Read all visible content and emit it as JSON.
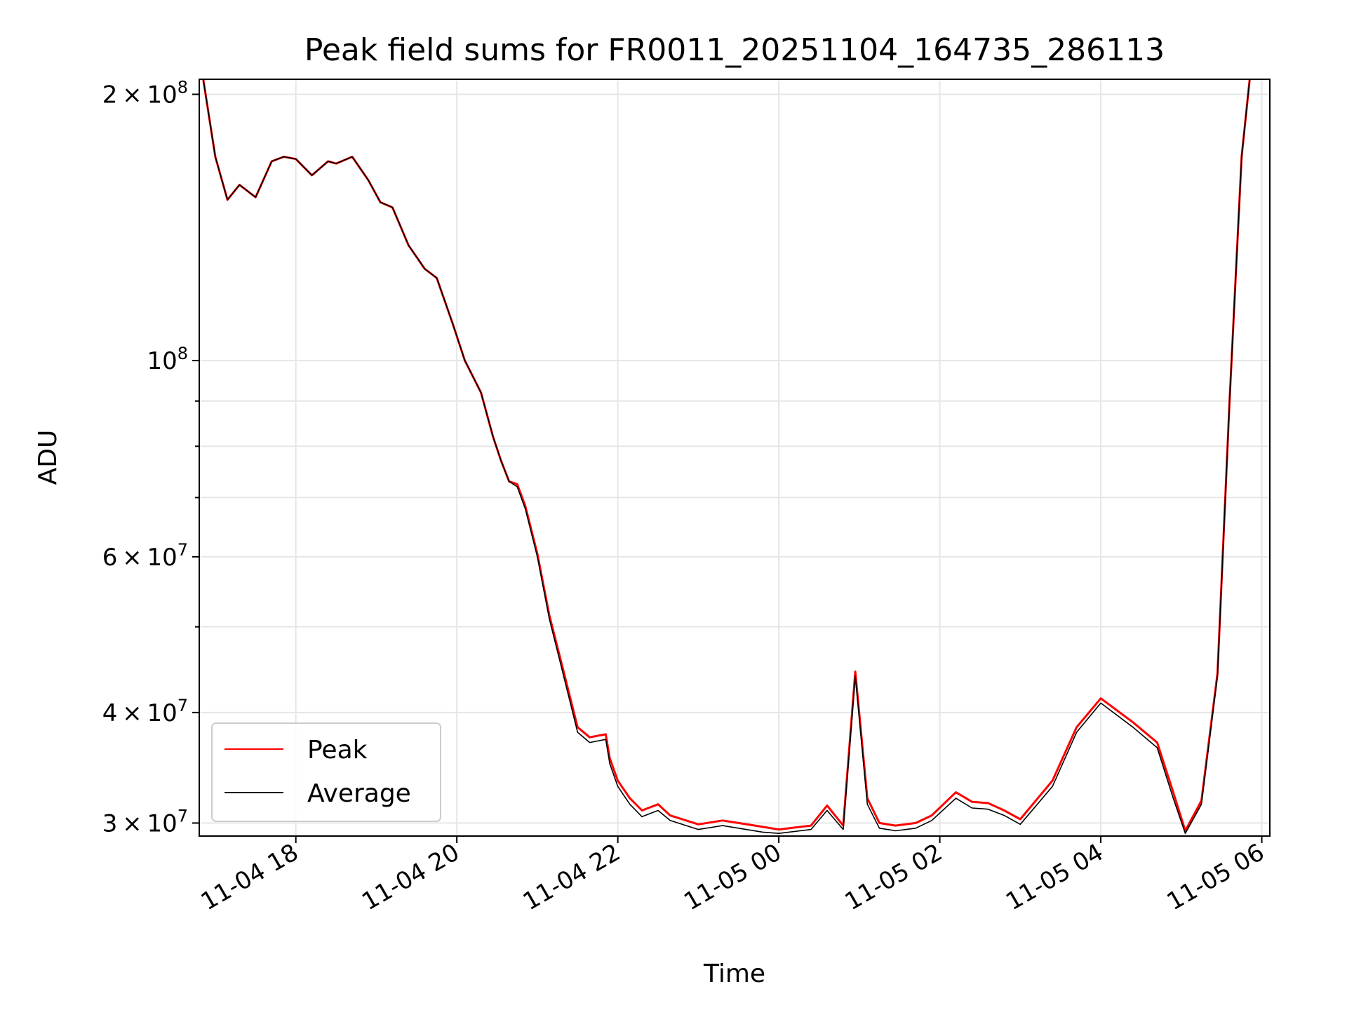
{
  "chart_data": {
    "type": "line",
    "title": "Peak field sums for FR0011_20251104_164735_286113",
    "xlabel": "Time",
    "ylabel": "ADU",
    "yscale": "log",
    "ylim": [
      29000000,
      208000000
    ],
    "xlim_hours": [
      16.8,
      30.1
    ],
    "grid": true,
    "x_ticks": [
      {
        "label": "11-04 18",
        "value": 18
      },
      {
        "label": "11-04 20",
        "value": 20
      },
      {
        "label": "11-04 22",
        "value": 22
      },
      {
        "label": "11-05 00",
        "value": 24
      },
      {
        "label": "11-05 02",
        "value": 26
      },
      {
        "label": "11-05 04",
        "value": 28
      },
      {
        "label": "11-05 06",
        "value": 30
      }
    ],
    "y_ticks": [
      {
        "mant": "3",
        "exp": "7",
        "value": 30000000
      },
      {
        "mant": "4",
        "exp": "7",
        "value": 40000000
      },
      {
        "mant": "6",
        "exp": "7",
        "value": 60000000
      },
      {
        "mant": "",
        "exp": "8",
        "value": 100000000
      },
      {
        "mant": "2",
        "exp": "8",
        "value": 200000000
      }
    ],
    "y_minor_ticks": [
      50000000,
      70000000,
      80000000,
      90000000
    ],
    "legend": {
      "position": "lower-left",
      "entries": [
        {
          "label": "Peak",
          "color": "#ff0000"
        },
        {
          "label": "Average",
          "color": "#000000"
        }
      ]
    },
    "series": [
      {
        "name": "Average",
        "color": "#000000",
        "x": [
          16.85,
          17.0,
          17.15,
          17.3,
          17.5,
          17.7,
          17.85,
          18.0,
          18.2,
          18.4,
          18.5,
          18.7,
          18.9,
          19.05,
          19.2,
          19.4,
          19.6,
          19.75,
          19.95,
          20.1,
          20.3,
          20.45,
          20.55,
          20.65,
          20.75,
          20.85,
          21.0,
          21.15,
          21.3,
          21.5,
          21.65,
          21.85,
          21.9,
          22.0,
          22.15,
          22.3,
          22.5,
          22.65,
          23.0,
          23.3,
          23.5,
          23.8,
          24.0,
          24.4,
          24.6,
          24.8,
          24.95,
          25.1,
          25.25,
          25.45,
          25.7,
          25.9,
          26.2,
          26.4,
          26.6,
          26.8,
          27.0,
          27.4,
          27.7,
          28.0,
          28.4,
          28.7,
          28.9,
          29.05,
          29.25,
          29.45,
          29.6,
          29.75,
          29.85
        ],
        "y": [
          208000000,
          170000000,
          152000000,
          158000000,
          153000000,
          168000000,
          170000000,
          169000000,
          162000000,
          168000000,
          167000000,
          170000000,
          160000000,
          151000000,
          149000000,
          135000000,
          127000000,
          124000000,
          110000000,
          100000000,
          92000000,
          82000000,
          77000000,
          73000000,
          72000000,
          68000000,
          60000000,
          51000000,
          45000000,
          38000000,
          37000000,
          37300000,
          35000000,
          33000000,
          31500000,
          30500000,
          31000000,
          30200000,
          29500000,
          29800000,
          29600000,
          29300000,
          29200000,
          29500000,
          31000000,
          29500000,
          44000000,
          31500000,
          29600000,
          29400000,
          29600000,
          30200000,
          32000000,
          31200000,
          31100000,
          30600000,
          29900000,
          33000000,
          38000000,
          41000000,
          38500000,
          36500000,
          32000000,
          29200000,
          31500000,
          44000000,
          90000000,
          170000000,
          208000000
        ]
      },
      {
        "name": "Peak",
        "color": "#ff0000",
        "x": [
          16.85,
          17.0,
          17.15,
          17.3,
          17.5,
          17.7,
          17.85,
          18.0,
          18.2,
          18.4,
          18.5,
          18.7,
          18.9,
          19.05,
          19.2,
          19.4,
          19.6,
          19.75,
          19.95,
          20.1,
          20.3,
          20.45,
          20.55,
          20.65,
          20.75,
          20.85,
          21.0,
          21.15,
          21.3,
          21.5,
          21.65,
          21.85,
          21.9,
          22.0,
          22.15,
          22.3,
          22.5,
          22.65,
          23.0,
          23.3,
          23.5,
          23.8,
          24.0,
          24.4,
          24.6,
          24.8,
          24.95,
          25.1,
          25.25,
          25.45,
          25.7,
          25.9,
          26.2,
          26.4,
          26.6,
          26.8,
          27.0,
          27.4,
          27.7,
          28.0,
          28.4,
          28.7,
          28.9,
          29.05,
          29.25,
          29.45,
          29.6,
          29.75,
          29.85
        ],
        "y": [
          208000000,
          170000000,
          152000000,
          158000000,
          153000000,
          168000000,
          170000000,
          169000000,
          162000000,
          168000000,
          167000000,
          170000000,
          160000000,
          151000000,
          149000000,
          135000000,
          127000000,
          124000000,
          110000000,
          100000000,
          92000000,
          82000000,
          77000000,
          73000000,
          72500000,
          68500000,
          60500000,
          51500000,
          45500000,
          38500000,
          37500000,
          37800000,
          35500000,
          33500000,
          32000000,
          31000000,
          31500000,
          30600000,
          29900000,
          30200000,
          30000000,
          29700000,
          29500000,
          29800000,
          31400000,
          29800000,
          44500000,
          32000000,
          30000000,
          29800000,
          30000000,
          30600000,
          32500000,
          31700000,
          31600000,
          31000000,
          30300000,
          33500000,
          38500000,
          41500000,
          39000000,
          37000000,
          32500000,
          29400000,
          31800000,
          44300000,
          90000000,
          170000000,
          208000000
        ]
      }
    ]
  }
}
